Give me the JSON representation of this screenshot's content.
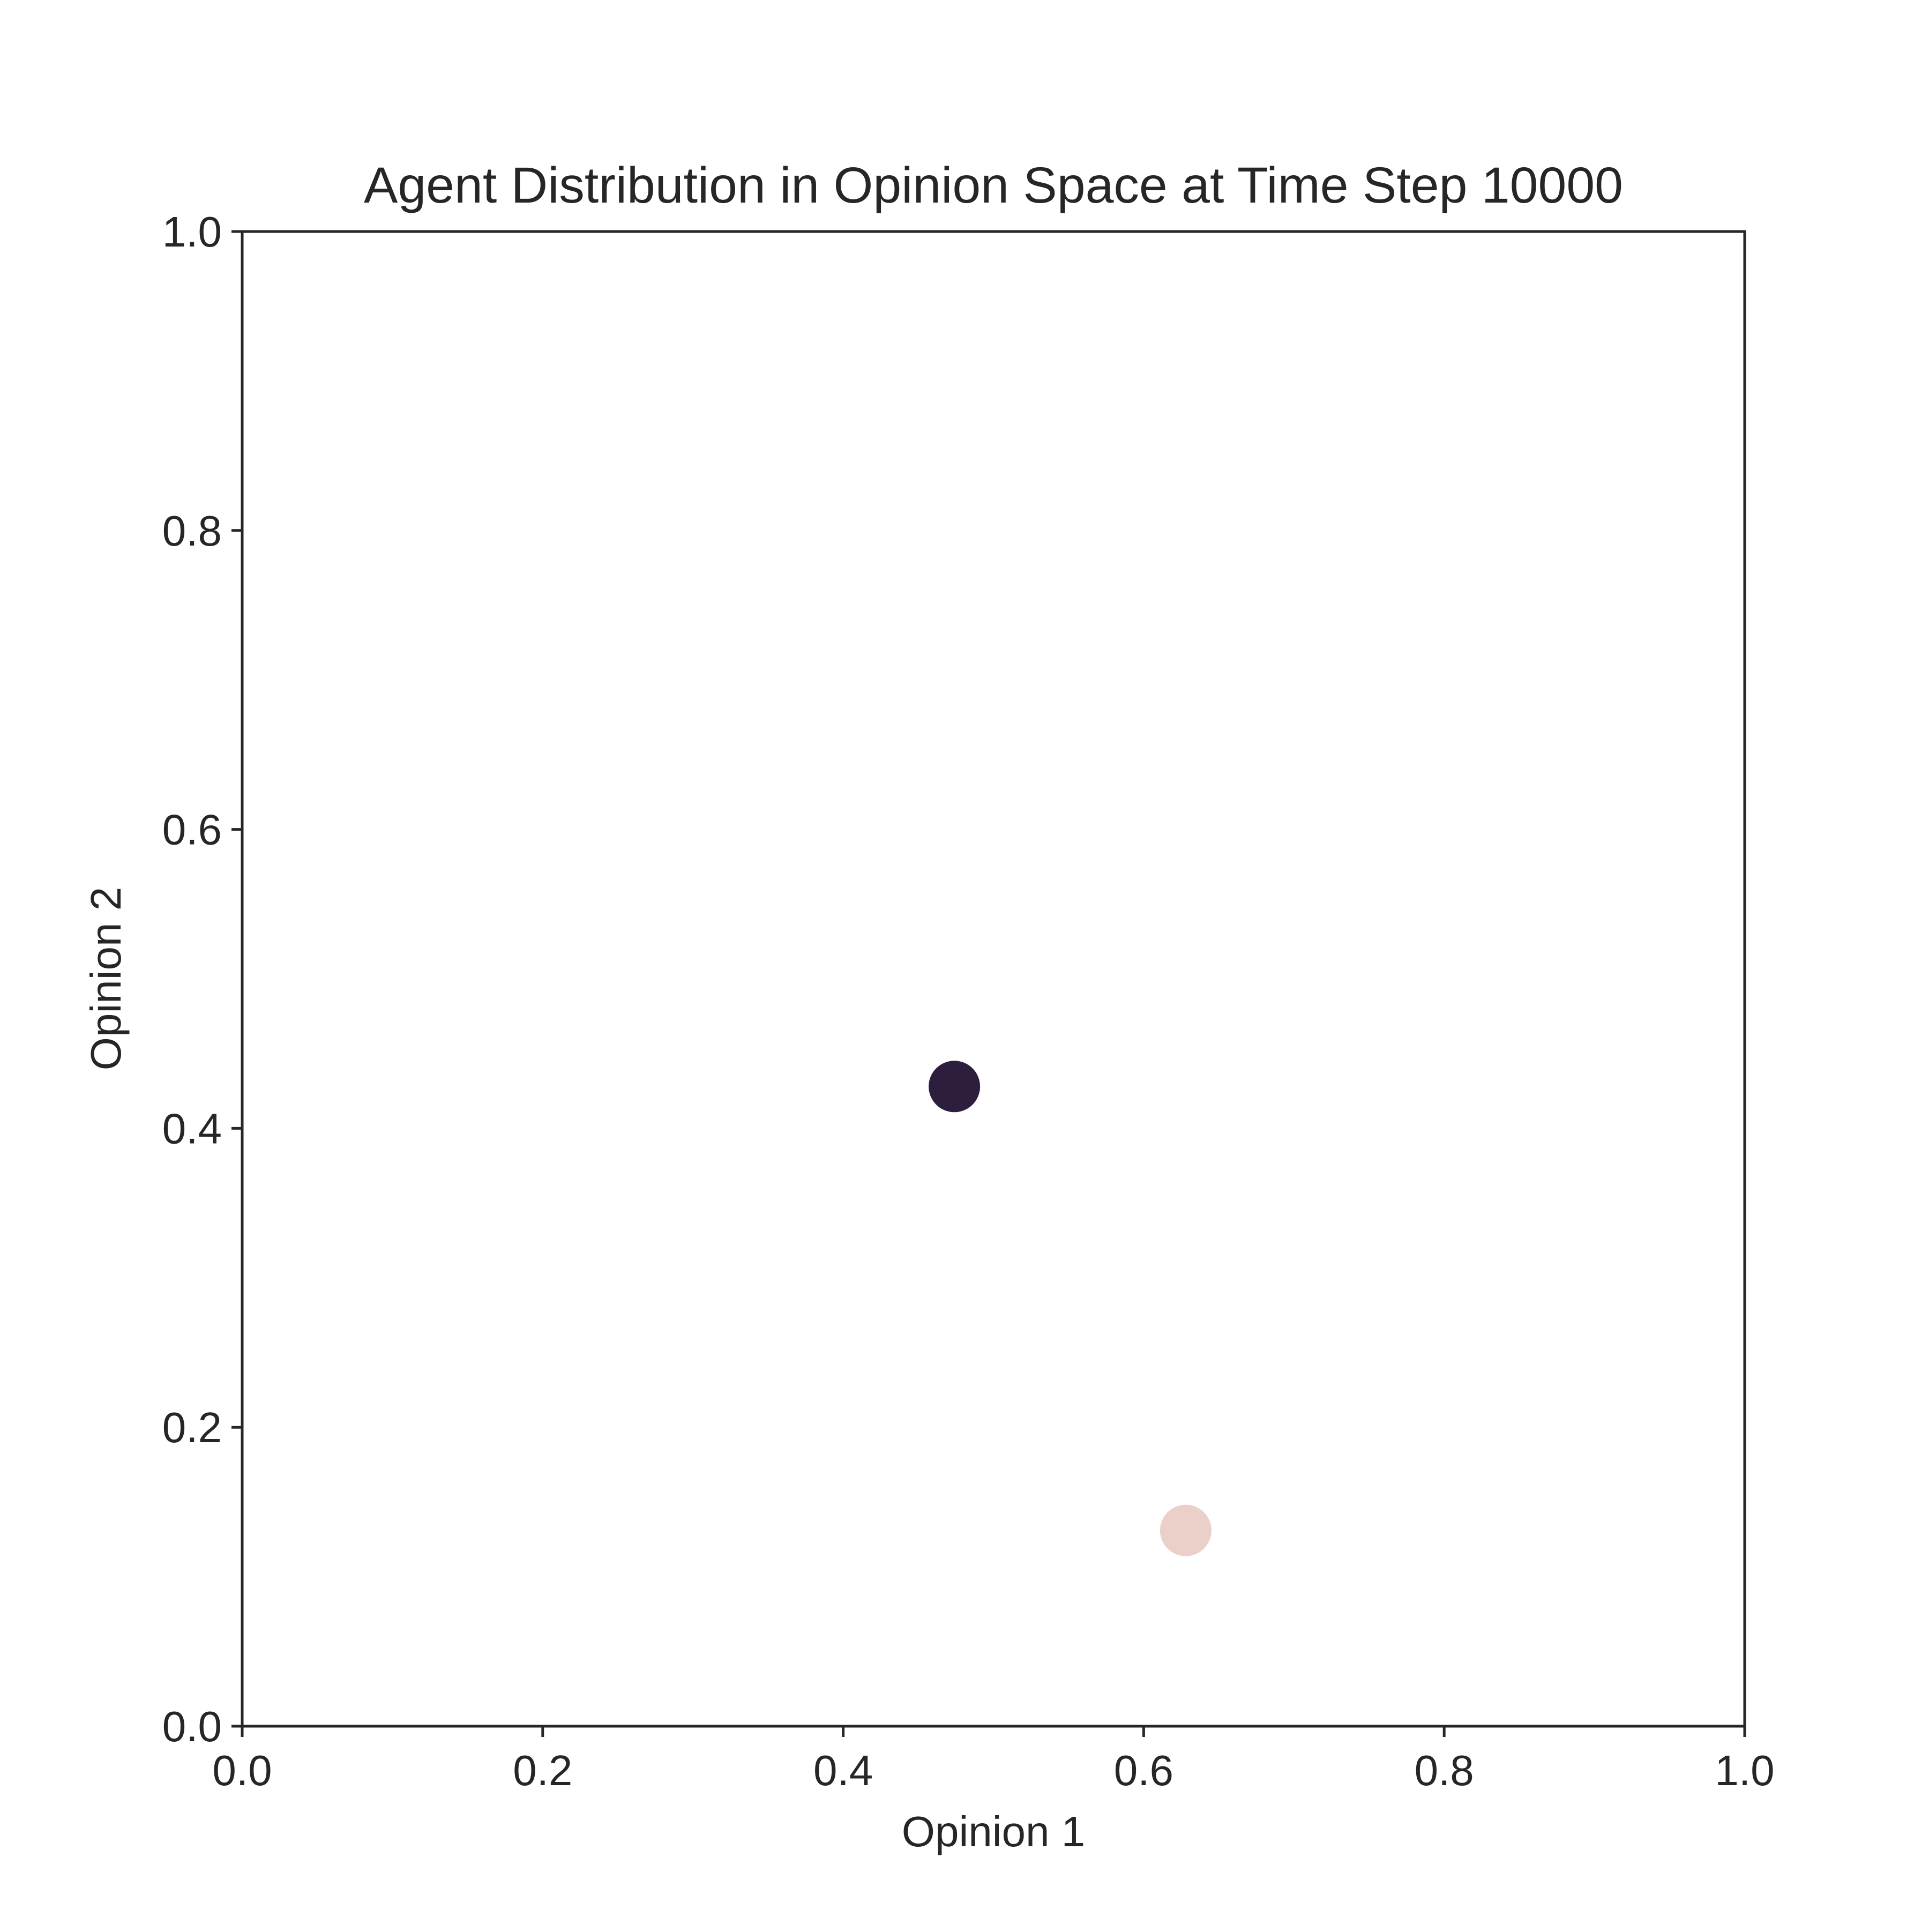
{
  "chart_data": {
    "type": "scatter",
    "title": "Agent Distribution in Opinion Space at Time Step 10000",
    "xlabel": "Opinion 1",
    "ylabel": "Opinion 2",
    "xlim": [
      0.0,
      1.0
    ],
    "ylim": [
      0.0,
      1.0
    ],
    "xticks": [
      "0.0",
      "0.2",
      "0.4",
      "0.6",
      "0.8",
      "1.0"
    ],
    "yticks": [
      "0.0",
      "0.2",
      "0.4",
      "0.6",
      "0.8",
      "1.0"
    ],
    "grid": false,
    "legend": "none",
    "points": [
      {
        "x": 0.474,
        "y": 0.428,
        "color": "#2d1e3e"
      },
      {
        "x": 0.628,
        "y": 0.131,
        "color": "#ebd0ca"
      }
    ]
  }
}
